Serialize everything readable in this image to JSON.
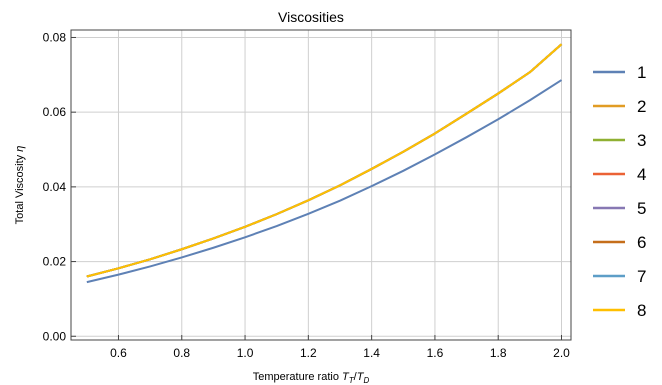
{
  "chart_data": {
    "type": "line",
    "title": "Viscosities",
    "xlabel": "Temperature ratio",
    "xlabel_math": {
      "main": "T",
      "sub1": "T",
      "sep": "/",
      "sub2": "D"
    },
    "ylabel": "Total Viscosity",
    "ylabel_symbol": "η",
    "xlim": [
      0.45,
      2.03
    ],
    "ylim": [
      -0.001,
      0.082
    ],
    "xticks": [
      0.6,
      0.8,
      1.0,
      1.2,
      1.4,
      1.6,
      1.8,
      2.0
    ],
    "xtick_labels": [
      "0.6",
      "0.8",
      "1.0",
      "1.2",
      "1.4",
      "1.6",
      "1.8",
      "2.0"
    ],
    "yticks": [
      0.0,
      0.02,
      0.04,
      0.06,
      0.08
    ],
    "ytick_labels": [
      "0.00",
      "0.02",
      "0.04",
      "0.06",
      "0.08"
    ],
    "grid": true,
    "legend_position": "right",
    "x": [
      0.5,
      0.6,
      0.7,
      0.8,
      0.9,
      1.0,
      1.1,
      1.2,
      1.3,
      1.4,
      1.5,
      1.6,
      1.7,
      1.8,
      1.9,
      2.0
    ],
    "series": [
      {
        "name": "1",
        "color": "#5E81B5",
        "values": [
          0.0145,
          0.0165,
          0.0187,
          0.0211,
          0.0237,
          0.0265,
          0.0295,
          0.0328,
          0.0363,
          0.0402,
          0.0443,
          0.0487,
          0.0533,
          0.0581,
          0.0632,
          0.0686
        ]
      },
      {
        "name": "2",
        "color": "#E19C24",
        "values": [
          0.016,
          0.0182,
          0.0206,
          0.0233,
          0.0262,
          0.0293,
          0.0327,
          0.0364,
          0.0404,
          0.0448,
          0.0494,
          0.0543,
          0.0596,
          0.065,
          0.0707,
          0.0782
        ]
      },
      {
        "name": "3",
        "color": "#8FB032",
        "values": [
          0.016,
          0.0182,
          0.0206,
          0.0233,
          0.0262,
          0.0293,
          0.0327,
          0.0364,
          0.0404,
          0.0448,
          0.0494,
          0.0543,
          0.0596,
          0.065,
          0.0707,
          0.0782
        ]
      },
      {
        "name": "4",
        "color": "#EB6235",
        "values": [
          0.016,
          0.0182,
          0.0206,
          0.0233,
          0.0262,
          0.0293,
          0.0327,
          0.0364,
          0.0404,
          0.0448,
          0.0494,
          0.0543,
          0.0596,
          0.065,
          0.0707,
          0.0782
        ]
      },
      {
        "name": "5",
        "color": "#8778B3",
        "values": [
          0.016,
          0.0182,
          0.0206,
          0.0233,
          0.0262,
          0.0293,
          0.0327,
          0.0364,
          0.0404,
          0.0448,
          0.0494,
          0.0543,
          0.0596,
          0.065,
          0.0707,
          0.0782
        ]
      },
      {
        "name": "6",
        "color": "#C56E1A",
        "values": [
          0.016,
          0.0182,
          0.0206,
          0.0233,
          0.0262,
          0.0293,
          0.0327,
          0.0364,
          0.0404,
          0.0448,
          0.0494,
          0.0543,
          0.0596,
          0.065,
          0.0707,
          0.0782
        ]
      },
      {
        "name": "7",
        "color": "#5D9EC7",
        "values": [
          0.016,
          0.0182,
          0.0206,
          0.0233,
          0.0262,
          0.0293,
          0.0327,
          0.0364,
          0.0404,
          0.0448,
          0.0494,
          0.0543,
          0.0596,
          0.065,
          0.0707,
          0.0782
        ]
      },
      {
        "name": "8",
        "color": "#FFBF00",
        "values": [
          0.016,
          0.0182,
          0.0206,
          0.0233,
          0.0262,
          0.0293,
          0.0327,
          0.0364,
          0.0404,
          0.0448,
          0.0494,
          0.0543,
          0.0596,
          0.065,
          0.0707,
          0.0782
        ]
      }
    ]
  }
}
